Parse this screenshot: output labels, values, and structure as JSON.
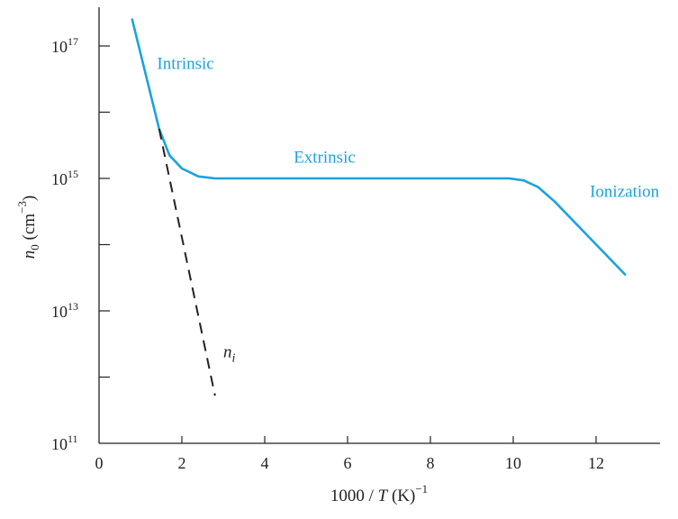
{
  "chart_data": {
    "type": "line",
    "xlabel": "1000 / T (K)−1",
    "xlabel_parts": {
      "pre": "1000 / ",
      "T": "T",
      "post": " (K)",
      "exp": "−1"
    },
    "ylabel_parts": {
      "n": "n",
      "sub": "0",
      "mid": " (cm",
      "exp": "−3",
      "end": ")"
    },
    "xlim": [
      0,
      13.4
    ],
    "ylim_log10": [
      11,
      17.5
    ],
    "y_scale": "log",
    "x_ticks": [
      {
        "value": 0,
        "label": "0"
      },
      {
        "value": 2,
        "label": "2"
      },
      {
        "value": 4,
        "label": "4"
      },
      {
        "value": 6,
        "label": "6"
      },
      {
        "value": 8,
        "label": "8"
      },
      {
        "value": 10,
        "label": "10"
      },
      {
        "value": 12,
        "label": "12"
      }
    ],
    "y_ticks_major": [
      {
        "exp": 11,
        "base": "10",
        "sup": "11"
      },
      {
        "exp": 13,
        "base": "10",
        "sup": "13"
      },
      {
        "exp": 15,
        "base": "10",
        "sup": "15"
      },
      {
        "exp": 17,
        "base": "10",
        "sup": "17"
      }
    ],
    "y_ticks_minor": [
      12,
      14,
      16
    ],
    "series": [
      {
        "role": "n0",
        "style": "solid",
        "color": "#1aa3de",
        "points": [
          [
            0.8,
            17.4
          ],
          [
            1.45,
            15.75
          ],
          [
            1.7,
            15.35
          ],
          [
            2.0,
            15.15
          ],
          [
            2.4,
            15.03
          ],
          [
            2.8,
            15.0
          ],
          [
            4.0,
            15.0
          ],
          [
            6.0,
            15.0
          ],
          [
            8.0,
            15.0
          ],
          [
            9.9,
            15.0
          ],
          [
            10.25,
            14.97
          ],
          [
            10.6,
            14.87
          ],
          [
            11.0,
            14.65
          ],
          [
            12.7,
            13.55
          ]
        ]
      },
      {
        "role": "ni",
        "style": "dashed",
        "color": "#222222",
        "points": [
          [
            1.45,
            15.75
          ],
          [
            2.8,
            11.72
          ]
        ]
      }
    ],
    "annotations": [
      {
        "text": "Intrinsic",
        "x": 1.4,
        "y": 16.65
      },
      {
        "text": "Extrinsic",
        "x": 4.7,
        "y": 15.24
      },
      {
        "text": "Ionization",
        "x": 11.85,
        "y": 14.72
      }
    ],
    "ni_label": {
      "text": "n",
      "sub": "i",
      "x": 3.0,
      "y": 12.3
    },
    "grid": false,
    "legend": "none"
  }
}
